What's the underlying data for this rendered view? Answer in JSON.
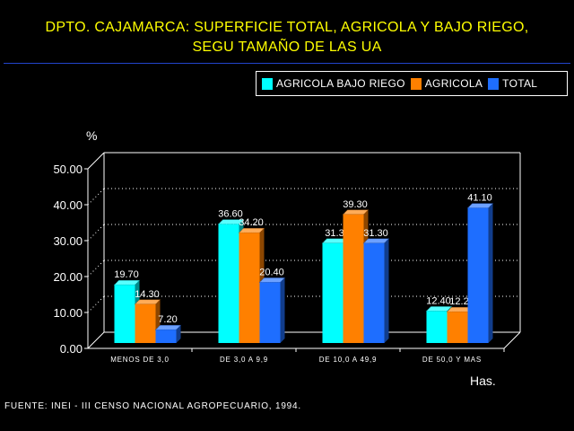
{
  "title": {
    "line1": "DPTO. CAJAMARCA: SUPERFICIE TOTAL, AGRICOLA Y BAJO RIEGO,",
    "line2": "SEGU TAMAÑO DE LAS UA"
  },
  "source": "FUENTE: INEI - III CENSO NACIONAL AGROPECUARIO, 1994.",
  "colors": {
    "background": "#000000",
    "title": "#ffff00",
    "rule": "#2244cc"
  },
  "chart_data": {
    "type": "bar",
    "ylabel": "%",
    "xlabel": "Has.",
    "ylim": [
      0,
      50
    ],
    "yticks": [
      "0.00",
      "10.00",
      "20.00",
      "30.00",
      "40.00",
      "50.00"
    ],
    "categories": [
      "MENOS DE 3,0",
      "DE 3,0  A 9,9",
      "DE 10,0 A 49,9",
      "DE 50,0 Y MAS"
    ],
    "series": [
      {
        "name": "AGRICOLA BAJO RIEGO",
        "color": "#00ffff",
        "values": [
          19.7,
          36.6,
          31.3,
          12.4
        ],
        "labels": [
          "19.70",
          "36.60",
          "31.3",
          "12.40"
        ]
      },
      {
        "name": "AGRICOLA",
        "color": "#ff8000",
        "values": [
          14.3,
          34.2,
          39.3,
          12.2
        ],
        "labels": [
          "14.30",
          "34.20",
          "39.30",
          "12.2"
        ]
      },
      {
        "name": "TOTAL",
        "color": "#1e6eff",
        "values": [
          7.2,
          20.4,
          31.3,
          41.1
        ],
        "labels": [
          "7.20",
          "20.40",
          "31.30",
          "41.10"
        ]
      }
    ],
    "legend_position": "top-right",
    "grid": true
  }
}
